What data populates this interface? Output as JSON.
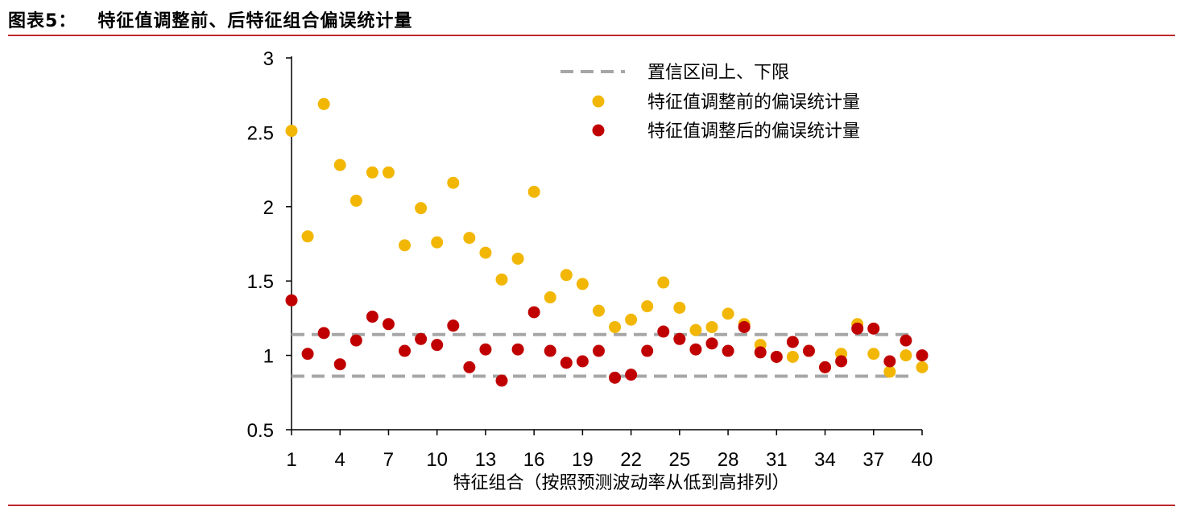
{
  "figure": {
    "label": "图表5：",
    "title": "特征值调整前、后特征组合偏误统计量"
  },
  "chart_data": {
    "type": "scatter",
    "xlabel": "特征组合（按照预测波动率从低到高排列）",
    "ylabel": "",
    "xlim": [
      1,
      40
    ],
    "ylim": [
      0.5,
      3
    ],
    "x_ticks": [
      1,
      4,
      7,
      10,
      13,
      16,
      19,
      22,
      25,
      28,
      31,
      34,
      37,
      40
    ],
    "y_ticks": [
      "0.5",
      "1",
      "1.5",
      "2",
      "2.5",
      "3"
    ],
    "x": [
      1,
      2,
      3,
      4,
      5,
      6,
      7,
      8,
      9,
      10,
      11,
      12,
      13,
      14,
      15,
      16,
      17,
      18,
      19,
      20,
      21,
      22,
      23,
      24,
      25,
      26,
      27,
      28,
      29,
      30,
      31,
      32,
      33,
      34,
      35,
      36,
      37,
      38,
      39,
      40
    ],
    "series": [
      {
        "name": "特征值调整前的偏误统计量",
        "color": "#f2b705",
        "values": [
          2.51,
          1.8,
          2.69,
          2.28,
          2.04,
          2.23,
          2.23,
          1.74,
          1.99,
          1.76,
          2.16,
          1.79,
          1.69,
          1.51,
          1.65,
          2.1,
          1.39,
          1.54,
          1.48,
          1.3,
          1.19,
          1.24,
          1.33,
          1.49,
          1.32,
          1.17,
          1.19,
          1.28,
          1.21,
          1.07,
          0.99,
          0.99,
          1.03,
          0.92,
          1.01,
          1.21,
          1.01,
          0.89,
          1.0,
          0.92
        ]
      },
      {
        "name": "特征值调整后的偏误统计量",
        "color": "#c00000",
        "values": [
          1.37,
          1.01,
          1.15,
          0.94,
          1.1,
          1.26,
          1.21,
          1.03,
          1.11,
          1.07,
          1.2,
          0.92,
          1.04,
          0.83,
          1.04,
          1.29,
          1.03,
          0.95,
          0.96,
          1.03,
          0.85,
          0.87,
          1.03,
          1.16,
          1.11,
          1.04,
          1.08,
          1.03,
          1.19,
          1.02,
          0.99,
          1.09,
          1.03,
          0.92,
          0.96,
          1.18,
          1.18,
          0.96,
          1.1,
          1.0
        ]
      }
    ],
    "reference_lines": {
      "name": "置信区间上、下限",
      "color": "#a6a6a6",
      "upper": 1.14,
      "lower": 0.86
    },
    "legend_position": "top-right",
    "grid": false
  }
}
